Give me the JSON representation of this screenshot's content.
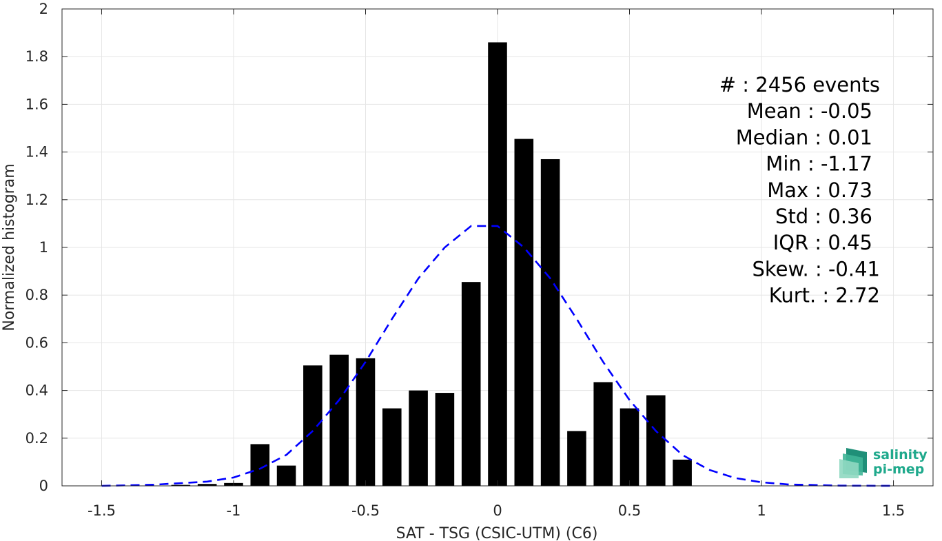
{
  "chart_data": {
    "type": "bar",
    "xlabel": "SAT - TSG (CSIC-UTM) (C6)",
    "ylabel": "Normalized histogram",
    "xlim": [
      -1.65,
      1.65
    ],
    "ylim": [
      0,
      2
    ],
    "xticks": [
      -1.5,
      -1,
      -0.5,
      0,
      0.5,
      1,
      1.5
    ],
    "xtick_labels": [
      "-1.5",
      "-1",
      "-0.5",
      "0",
      "0.5",
      "1",
      "1.5"
    ],
    "yticks": [
      0,
      0.2,
      0.4,
      0.6,
      0.8,
      1,
      1.2,
      1.4,
      1.6,
      1.8,
      2
    ],
    "ytick_labels": [
      "0",
      "0.2",
      "0.4",
      "0.6",
      "0.8",
      "1",
      "1.2",
      "1.4",
      "1.6",
      "1.8",
      "2"
    ],
    "grid": true,
    "bar_color": "#000000",
    "bars": {
      "x": [
        -1.2,
        -1.1,
        -1.0,
        -0.9,
        -0.8,
        -0.7,
        -0.6,
        -0.5,
        -0.4,
        -0.3,
        -0.2,
        -0.1,
        0.0,
        0.1,
        0.2,
        0.3,
        0.4,
        0.5,
        0.6,
        0.7
      ],
      "values": [
        0.004,
        0.008,
        0.012,
        0.175,
        0.085,
        0.505,
        0.55,
        0.535,
        0.325,
        0.4,
        0.39,
        0.855,
        1.86,
        1.455,
        1.37,
        0.23,
        0.435,
        0.325,
        0.38,
        0.11
      ]
    },
    "fit_curve": {
      "style": "dashed",
      "color": "#0000ff",
      "x": [
        -1.5,
        -1.3,
        -1.1,
        -1.0,
        -0.9,
        -0.8,
        -0.7,
        -0.6,
        -0.5,
        -0.4,
        -0.3,
        -0.2,
        -0.1,
        0.0,
        0.1,
        0.2,
        0.3,
        0.4,
        0.5,
        0.6,
        0.7,
        0.8,
        0.9,
        1.0,
        1.1,
        1.3,
        1.5
      ],
      "y": [
        0.0,
        0.005,
        0.018,
        0.035,
        0.072,
        0.13,
        0.23,
        0.36,
        0.52,
        0.7,
        0.87,
        1.0,
        1.09,
        1.09,
        1.0,
        0.87,
        0.7,
        0.52,
        0.36,
        0.23,
        0.13,
        0.068,
        0.033,
        0.015,
        0.006,
        0.001,
        0.0
      ]
    },
    "stats": [
      {
        "label": "#  ",
        "value": "2456 events"
      },
      {
        "label": "Mean",
        "value": "-0.05"
      },
      {
        "label": "Median",
        "value": "0.01"
      },
      {
        "label": "Min",
        "value": "-1.17"
      },
      {
        "label": "Max",
        "value": "0.73"
      },
      {
        "label": "Std",
        "value": "0.36"
      },
      {
        "label": "IQR",
        "value": "0.45"
      },
      {
        "label": "Skew.",
        "value": "-0.41"
      },
      {
        "label": "Kurt.",
        "value": "2.72"
      }
    ]
  },
  "logo": {
    "line1": "salinity",
    "line2": "pi-mep",
    "color": "#1fa98c"
  }
}
